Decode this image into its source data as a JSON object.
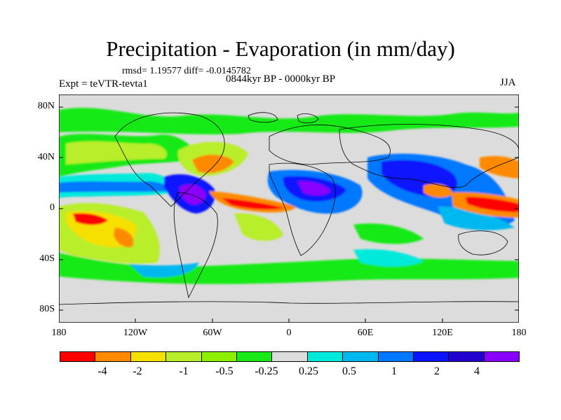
{
  "title": "Precipitation - Evaporation (in mm/day)",
  "stats": "rmsd= 1.19577 diff= -0.0145782",
  "period": "0844kyr BP - 0000kyr BP",
  "experiment": "Expt = teVTR-tevta1",
  "season": "JJA",
  "axes": {
    "y_labels": [
      "80N",
      "40N",
      "0",
      "40S",
      "80S"
    ],
    "x_labels": [
      "180",
      "120W",
      "60W",
      "0",
      "60E",
      "120E",
      "180"
    ]
  },
  "legend": {
    "labels": [
      "-4",
      "-2",
      "-1",
      "-0.5",
      "-0.25",
      "0.25",
      "0.5",
      "1",
      "2",
      "4"
    ],
    "colors": [
      "#ff0000",
      "#ff8a00",
      "#f5e000",
      "#b8ee2a",
      "#8cf000",
      "#17ea17",
      "#dcdcdc",
      "#00eadc",
      "#00b8f0",
      "#0078ff",
      "#0a14ff",
      "#2200d0",
      "#8a00ff"
    ]
  }
}
